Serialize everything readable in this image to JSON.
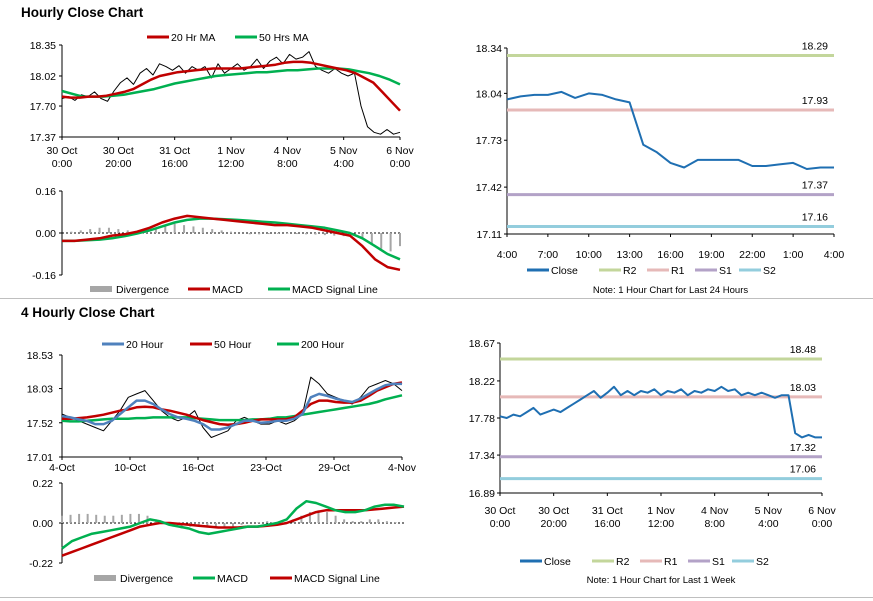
{
  "sections": {
    "hourly_title": "Hourly Close Chart",
    "four_hourly_title": "4 Hourly Close Chart"
  },
  "colors": {
    "ma_red": "#c00000",
    "ma_green": "#00b050",
    "ma_blue": "#4f81bd",
    "close_line": "#1f6fb2",
    "r2": "#c3d69b",
    "r1": "#e6b9b8",
    "s1": "#b3a2c7",
    "s2": "#93cddd",
    "divergence": "#a6a6a6",
    "price": "#000000"
  },
  "chart_data": [
    {
      "id": "hourly_price",
      "type": "line",
      "title": "Hourly Close Chart",
      "ylim": [
        17.37,
        18.35
      ],
      "yticks": [
        "18.35",
        "18.02",
        "17.70",
        "17.37"
      ],
      "xticks": [
        [
          "30 Oct",
          "0:00"
        ],
        [
          "30 Oct",
          "20:00"
        ],
        [
          "31 Oct",
          "16:00"
        ],
        [
          "1 Nov",
          "12:00"
        ],
        [
          "4 Nov",
          "8:00"
        ],
        [
          "5 Nov",
          "4:00"
        ],
        [
          "6 Nov",
          "0:00"
        ]
      ],
      "legend": [
        "20 Hr MA",
        "50 Hrs MA"
      ],
      "series": [
        {
          "name": "Close",
          "values": [
            17.78,
            17.8,
            17.76,
            17.82,
            17.8,
            17.85,
            17.78,
            17.75,
            17.86,
            17.95,
            18.0,
            17.93,
            18.05,
            18.1,
            18.03,
            18.15,
            18.12,
            18.08,
            18.13,
            18.05,
            18.12,
            18.08,
            18.12,
            18.0,
            18.15,
            18.05,
            18.1,
            18.15,
            18.08,
            18.12,
            18.2,
            18.1,
            18.18,
            18.22,
            18.15,
            18.25,
            18.2,
            18.22,
            18.28,
            18.12,
            18.08,
            18.05,
            18.1,
            18.05,
            18.02,
            18.05,
            17.7,
            17.48,
            17.42,
            17.4,
            17.45,
            17.4,
            17.42
          ]
        },
        {
          "name": "20 Hr MA",
          "values": [
            17.8,
            17.79,
            17.79,
            17.8,
            17.8,
            17.81,
            17.83,
            17.85,
            17.88,
            17.93,
            17.98,
            18.02,
            18.04,
            18.06,
            18.07,
            18.08,
            18.09,
            18.1,
            18.1,
            18.1,
            18.1,
            18.11,
            18.12,
            18.13,
            18.14,
            18.16,
            18.17,
            18.17,
            18.16,
            18.14,
            18.12,
            18.1,
            18.08,
            18.05,
            18.0,
            17.95,
            17.85,
            17.75,
            17.65
          ]
        },
        {
          "name": "50 Hrs MA",
          "values": [
            17.86,
            17.83,
            17.8,
            17.8,
            17.8,
            17.81,
            17.82,
            17.84,
            17.86,
            17.88,
            17.91,
            17.94,
            17.96,
            17.98,
            18.0,
            18.02,
            18.03,
            18.04,
            18.05,
            18.06,
            18.06,
            18.07,
            18.08,
            18.08,
            18.09,
            18.1,
            18.1,
            18.1,
            18.09,
            18.07,
            18.05,
            18.02,
            17.98,
            17.93
          ]
        }
      ]
    },
    {
      "id": "hourly_macd",
      "type": "line",
      "ylim": [
        -0.16,
        0.16
      ],
      "yticks": [
        "0.16",
        "0.00",
        "-0.16"
      ],
      "legend": [
        "Divergence",
        "MACD",
        "MACD Signal Line"
      ],
      "divergence": [
        0,
        0.005,
        0.01,
        0.015,
        0.02,
        0.02,
        0.015,
        0.01,
        0.005,
        0.01,
        0.02,
        0.03,
        0.035,
        0.03,
        0.025,
        0.02,
        0.015,
        0.01,
        0.005,
        0,
        -0.005,
        -0.005,
        -0.004,
        -0.003,
        -0.003,
        -0.004,
        -0.005,
        -0.006,
        -0.008,
        -0.01,
        -0.012,
        -0.01,
        -0.02,
        -0.04,
        -0.06,
        -0.07,
        -0.05
      ],
      "series": [
        {
          "name": "MACD",
          "values": [
            -0.03,
            -0.03,
            -0.025,
            -0.02,
            -0.01,
            -0.005,
            0.005,
            0.02,
            0.04,
            0.055,
            0.065,
            0.06,
            0.055,
            0.05,
            0.045,
            0.04,
            0.035,
            0.03,
            0.03,
            0.025,
            0.02,
            0.01,
            0,
            -0.01,
            -0.05,
            -0.1,
            -0.13,
            -0.14
          ]
        },
        {
          "name": "MACD Signal Line",
          "values": [
            -0.03,
            -0.03,
            -0.028,
            -0.025,
            -0.02,
            -0.012,
            -0.002,
            0.01,
            0.025,
            0.04,
            0.05,
            0.055,
            0.055,
            0.052,
            0.05,
            0.047,
            0.043,
            0.04,
            0.035,
            0.03,
            0.025,
            0.02,
            0.01,
            0,
            -0.02,
            -0.05,
            -0.08,
            -0.1
          ]
        }
      ]
    },
    {
      "id": "hourly_close_24h",
      "type": "line",
      "ylim": [
        17.11,
        18.34
      ],
      "yticks": [
        "18.34",
        "18.04",
        "17.73",
        "17.42",
        "17.11"
      ],
      "xticks": [
        "4:00",
        "7:00",
        "10:00",
        "13:00",
        "16:00",
        "19:00",
        "22:00",
        "1:00",
        "4:00"
      ],
      "series": [
        {
          "name": "Close",
          "values": [
            18.0,
            18.02,
            18.03,
            18.03,
            18.05,
            18.01,
            18.04,
            18.03,
            18.0,
            17.98,
            17.7,
            17.65,
            17.58,
            17.55,
            17.6,
            17.6,
            17.6,
            17.6,
            17.56,
            17.56,
            17.57,
            17.58,
            17.54,
            17.55,
            17.55
          ]
        }
      ],
      "levels": [
        {
          "name": "R2",
          "value": 18.29,
          "label": "18.29"
        },
        {
          "name": "R1",
          "value": 17.93,
          "label": "17.93"
        },
        {
          "name": "S1",
          "value": 17.37,
          "label": "17.37"
        },
        {
          "name": "S2",
          "value": 17.16,
          "label": "17.16"
        }
      ],
      "legend": [
        "Close",
        "R2",
        "R1",
        "S1",
        "S2"
      ],
      "note": "Note: 1 Hour Chart for Last 24 Hours"
    },
    {
      "id": "four_hourly_price",
      "type": "line",
      "title": "4 Hourly Close Chart",
      "ylim": [
        17.01,
        18.53
      ],
      "yticks": [
        "18.53",
        "18.03",
        "17.52",
        "17.01"
      ],
      "xticks": [
        "4-Oct",
        "10-Oct",
        "16-Oct",
        "23-Oct",
        "29-Oct",
        "4-Nov"
      ],
      "legend": [
        "20 Hour",
        "50 Hour",
        "200 Hour"
      ],
      "series": [
        {
          "name": "Close",
          "values": [
            17.65,
            17.6,
            17.55,
            17.5,
            17.45,
            17.4,
            17.55,
            17.7,
            17.9,
            17.95,
            18.0,
            17.85,
            17.7,
            17.6,
            17.55,
            17.6,
            17.7,
            17.45,
            17.3,
            17.35,
            17.4,
            17.55,
            17.6,
            17.55,
            17.5,
            17.5,
            17.55,
            17.5,
            17.55,
            17.65,
            18.2,
            18.1,
            17.95,
            17.9,
            17.85,
            17.8,
            17.9,
            18.05,
            18.1,
            18.15,
            18.1,
            18.0
          ]
        },
        {
          "name": "20 Hour",
          "values": [
            17.62,
            17.6,
            17.57,
            17.55,
            17.5,
            17.5,
            17.55,
            17.65,
            17.75,
            17.85,
            17.85,
            17.8,
            17.72,
            17.65,
            17.6,
            17.58,
            17.55,
            17.5,
            17.42,
            17.42,
            17.45,
            17.5,
            17.55,
            17.55,
            17.52,
            17.53,
            17.55,
            17.55,
            17.58,
            17.65,
            17.9,
            17.95,
            17.92,
            17.88,
            17.85,
            17.83,
            17.88,
            17.95,
            18.02,
            18.08,
            18.1,
            18.1
          ]
        },
        {
          "name": "50 Hour",
          "values": [
            17.58,
            17.58,
            17.59,
            17.6,
            17.62,
            17.64,
            17.67,
            17.7,
            17.72,
            17.75,
            17.76,
            17.75,
            17.72,
            17.7,
            17.67,
            17.64,
            17.6,
            17.56,
            17.53,
            17.5,
            17.49,
            17.5,
            17.52,
            17.55,
            17.57,
            17.57,
            17.57,
            17.57,
            17.6,
            17.7,
            17.8,
            17.85,
            17.85,
            17.83,
            17.82,
            17.82,
            17.85,
            17.92,
            18.0,
            18.05,
            18.1,
            18.12
          ]
        },
        {
          "name": "200 Hour",
          "values": [
            17.55,
            17.54,
            17.54,
            17.55,
            17.56,
            17.57,
            17.58,
            17.58,
            17.58,
            17.59,
            17.59,
            17.6,
            17.6,
            17.6,
            17.6,
            17.6,
            17.59,
            17.58,
            17.57,
            17.56,
            17.56,
            17.56,
            17.56,
            17.57,
            17.57,
            17.58,
            17.6,
            17.6,
            17.62,
            17.64,
            17.66,
            17.68,
            17.7,
            17.72,
            17.74,
            17.76,
            17.78,
            17.8,
            17.83,
            17.87,
            17.9,
            17.93
          ]
        }
      ]
    },
    {
      "id": "four_hourly_macd",
      "type": "line",
      "ylim": [
        -0.22,
        0.22
      ],
      "yticks": [
        "0.22",
        "0.00",
        "-0.22"
      ],
      "legend": [
        "Divergence",
        "MACD",
        "MACD Signal Line"
      ],
      "divergence": [
        0.04,
        0.045,
        0.05,
        0.05,
        0.045,
        0.04,
        0.04,
        0.045,
        0.05,
        0.05,
        0.04,
        0.02,
        0,
        -0.02,
        -0.03,
        -0.02,
        -0.01,
        -0.02,
        -0.03,
        -0.03,
        -0.02,
        -0.01,
        0,
        0.005,
        0.01,
        0.005,
        0,
        0.02,
        0.04,
        0.06,
        0.07,
        0.06,
        0.04,
        0.02,
        0.01,
        0.01,
        0.02,
        0.02,
        0.01,
        0.005,
        0
      ],
      "series": [
        {
          "name": "MACD",
          "values": [
            -0.14,
            -0.1,
            -0.08,
            -0.06,
            -0.05,
            -0.04,
            -0.03,
            -0.02,
            0,
            0.02,
            0.01,
            -0.01,
            -0.02,
            -0.03,
            -0.05,
            -0.06,
            -0.05,
            -0.04,
            -0.03,
            -0.02,
            -0.02,
            -0.01,
            0,
            0.02,
            0.08,
            0.12,
            0.11,
            0.09,
            0.07,
            0.06,
            0.06,
            0.07,
            0.09,
            0.1,
            0.1,
            0.09
          ]
        },
        {
          "name": "MACD Signal Line",
          "values": [
            -0.18,
            -0.16,
            -0.14,
            -0.12,
            -0.1,
            -0.08,
            -0.06,
            -0.04,
            -0.02,
            -0.01,
            0,
            0,
            -0.005,
            -0.01,
            -0.015,
            -0.02,
            -0.025,
            -0.025,
            -0.025,
            -0.02,
            -0.02,
            -0.015,
            -0.01,
            0,
            0.02,
            0.04,
            0.06,
            0.07,
            0.07,
            0.07,
            0.07,
            0.07,
            0.075,
            0.08,
            0.085,
            0.09
          ]
        }
      ]
    },
    {
      "id": "hourly_close_week",
      "type": "line",
      "ylim": [
        16.89,
        18.67
      ],
      "yticks": [
        "18.67",
        "18.22",
        "17.78",
        "17.34",
        "16.89"
      ],
      "xticks": [
        [
          "30 Oct",
          "0:00"
        ],
        [
          "30 Oct",
          "20:00"
        ],
        [
          "31 Oct",
          "16:00"
        ],
        [
          "1 Nov",
          "12:00"
        ],
        [
          "4 Nov",
          "8:00"
        ],
        [
          "5 Nov",
          "4:00"
        ],
        [
          "6 Nov",
          "0:00"
        ]
      ],
      "series": [
        {
          "name": "Close",
          "values": [
            17.8,
            17.78,
            17.82,
            17.8,
            17.85,
            17.9,
            17.82,
            17.85,
            17.88,
            17.85,
            17.9,
            17.95,
            18.0,
            18.05,
            18.1,
            18.02,
            18.08,
            18.15,
            18.05,
            18.1,
            18.05,
            18.1,
            18.08,
            18.12,
            18.05,
            18.1,
            18.08,
            18.12,
            18.05,
            18.1,
            18.08,
            18.12,
            18.1,
            18.15,
            18.1,
            18.12,
            18.05,
            18.08,
            18.05,
            18.08,
            18.05,
            18.02,
            18.05,
            18.05,
            17.6,
            17.55,
            17.58,
            17.55,
            17.55
          ]
        }
      ],
      "levels": [
        {
          "name": "R2",
          "value": 18.48,
          "label": "18.48"
        },
        {
          "name": "R1",
          "value": 18.03,
          "label": "18.03"
        },
        {
          "name": "S1",
          "value": 17.32,
          "label": "17.32"
        },
        {
          "name": "S2",
          "value": 17.06,
          "label": "17.06"
        }
      ],
      "legend": [
        "Close",
        "R2",
        "R1",
        "S1",
        "S2"
      ],
      "note": "Note: 1 Hour Chart for Last 1 Week"
    }
  ]
}
